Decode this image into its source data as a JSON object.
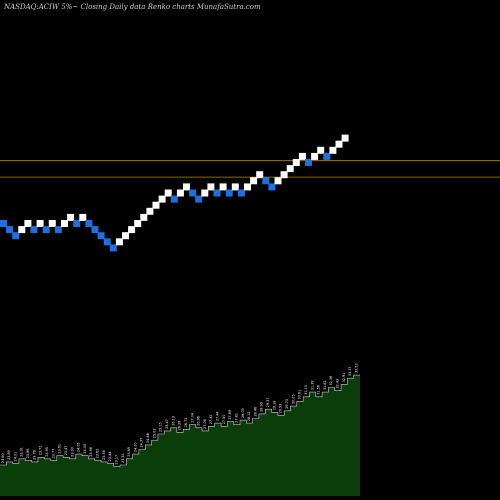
{
  "chart_data": {
    "type": "renko",
    "title": "NASDAQ:ACIW 5%~  Closing Daily data  Renko  charts MunafaSutra.com",
    "colors": {
      "background": "#000000",
      "up_brick": "#ffffff",
      "down_brick": "#1e6fe0",
      "line": "#b8860b",
      "volume_fill": "#0a3d0a",
      "volume_stroke": "#d0d0d0"
    },
    "bricks": [
      {
        "dir": "down",
        "level": 0
      },
      {
        "dir": "down",
        "level": -1
      },
      {
        "dir": "down",
        "level": -2
      },
      {
        "dir": "up",
        "level": -1
      },
      {
        "dir": "up",
        "level": 0
      },
      {
        "dir": "down",
        "level": -1
      },
      {
        "dir": "up",
        "level": 0
      },
      {
        "dir": "down",
        "level": -1
      },
      {
        "dir": "up",
        "level": 0
      },
      {
        "dir": "down",
        "level": -1
      },
      {
        "dir": "up",
        "level": 0
      },
      {
        "dir": "up",
        "level": 1
      },
      {
        "dir": "down",
        "level": 0
      },
      {
        "dir": "up",
        "level": 1
      },
      {
        "dir": "down",
        "level": 0
      },
      {
        "dir": "down",
        "level": -1
      },
      {
        "dir": "down",
        "level": -2
      },
      {
        "dir": "down",
        "level": -3
      },
      {
        "dir": "down",
        "level": -4
      },
      {
        "dir": "up",
        "level": -3
      },
      {
        "dir": "up",
        "level": -2
      },
      {
        "dir": "up",
        "level": -1
      },
      {
        "dir": "up",
        "level": 0
      },
      {
        "dir": "up",
        "level": 1
      },
      {
        "dir": "up",
        "level": 2
      },
      {
        "dir": "up",
        "level": 3
      },
      {
        "dir": "up",
        "level": 4
      },
      {
        "dir": "up",
        "level": 5
      },
      {
        "dir": "down",
        "level": 4
      },
      {
        "dir": "up",
        "level": 5
      },
      {
        "dir": "up",
        "level": 6
      },
      {
        "dir": "down",
        "level": 5
      },
      {
        "dir": "down",
        "level": 4
      },
      {
        "dir": "up",
        "level": 5
      },
      {
        "dir": "up",
        "level": 6
      },
      {
        "dir": "down",
        "level": 5
      },
      {
        "dir": "up",
        "level": 6
      },
      {
        "dir": "down",
        "level": 5
      },
      {
        "dir": "up",
        "level": 6
      },
      {
        "dir": "down",
        "level": 5
      },
      {
        "dir": "up",
        "level": 6
      },
      {
        "dir": "up",
        "level": 7
      },
      {
        "dir": "up",
        "level": 8
      },
      {
        "dir": "down",
        "level": 7
      },
      {
        "dir": "down",
        "level": 6
      },
      {
        "dir": "up",
        "level": 7
      },
      {
        "dir": "up",
        "level": 8
      },
      {
        "dir": "up",
        "level": 9
      },
      {
        "dir": "up",
        "level": 10
      },
      {
        "dir": "up",
        "level": 11
      },
      {
        "dir": "down",
        "level": 10
      },
      {
        "dir": "up",
        "level": 11
      },
      {
        "dir": "up",
        "level": 12
      },
      {
        "dir": "down",
        "level": 11
      },
      {
        "dir": "up",
        "level": 12
      },
      {
        "dir": "up",
        "level": 13
      },
      {
        "dir": "up",
        "level": 14
      }
    ],
    "horizontal_lines": [
      {
        "level": 10.3
      },
      {
        "level": 7.6
      }
    ],
    "volume_values": [
      20,
      22,
      21,
      24,
      23,
      22,
      25,
      24,
      23,
      26,
      25,
      24,
      27,
      26,
      24,
      23,
      22,
      21,
      19,
      20,
      24,
      27,
      30,
      33,
      36,
      40,
      42,
      44,
      41,
      43,
      46,
      44,
      42,
      45,
      47,
      45,
      48,
      46,
      49,
      47,
      50,
      53,
      56,
      54,
      52,
      55,
      58,
      61,
      64,
      67,
      64,
      67,
      70,
      68,
      72,
      76,
      78
    ],
    "volume_labels": [
      "23.80",
      "23.89",
      "24.01",
      "23.91",
      "23.96",
      "23.76",
      "23.72",
      "23.95",
      "23.77",
      "23.61",
      "23.47",
      "23.90",
      "24.05",
      "24.35",
      "23.98",
      "23.62",
      "23.58",
      "23.44",
      "23.17",
      "23.31",
      "23.69",
      "24.00",
      "24.37",
      "24.88",
      "25.03",
      "25.15",
      "25.47",
      "26.13",
      "26.39",
      "26.72",
      "27.04",
      "26.96",
      "27.06",
      "27.32",
      "27.44",
      "27.50",
      "27.69",
      "27.81",
      "28.03",
      "28.12",
      "28.46",
      "28.99",
      "29.37",
      "29.18",
      "29.53",
      "29.73",
      "30.05",
      "30.61",
      "31.13",
      "31.39",
      "31.56",
      "31.82",
      "32.08",
      "32.43",
      "32.91",
      "33.17",
      "33.52"
    ]
  }
}
